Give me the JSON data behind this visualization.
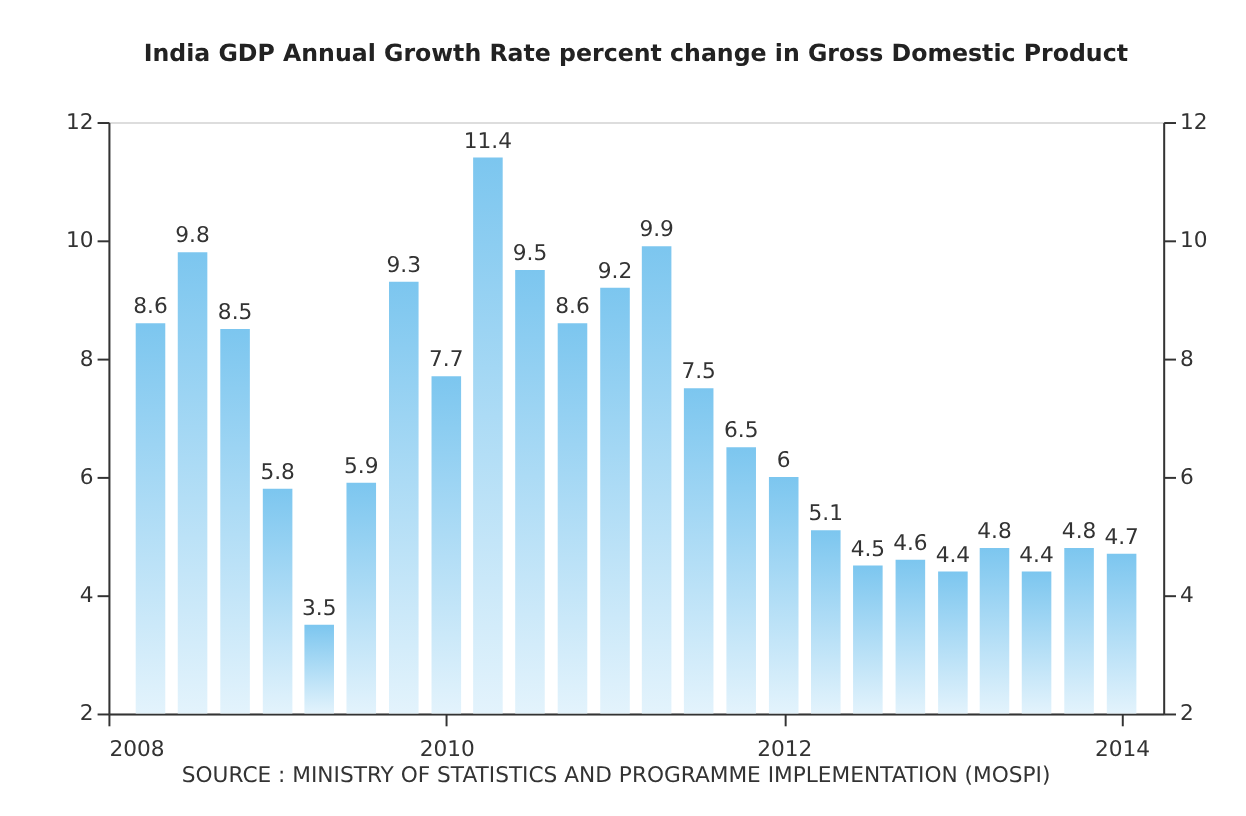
{
  "chart_data": {
    "type": "bar",
    "title": "India GDP Annual Growth Rate percent change in Gross Domestic Product",
    "x": [
      "2008-04",
      "2008-07",
      "2008-10",
      "2009-01",
      "2009-04",
      "2009-07",
      "2009-10",
      "2010-01",
      "2010-04",
      "2010-07",
      "2010-10",
      "2011-01",
      "2011-04",
      "2011-07",
      "2011-10",
      "2012-01",
      "2012-04",
      "2012-07",
      "2012-10",
      "2013-01",
      "2013-04",
      "2013-07",
      "2013-10",
      "2014-01"
    ],
    "values": [
      8.6,
      9.8,
      8.5,
      5.8,
      3.5,
      5.9,
      9.3,
      7.7,
      11.4,
      9.5,
      8.6,
      9.2,
      9.9,
      7.5,
      6.5,
      6,
      5.1,
      4.5,
      4.6,
      4.4,
      4.8,
      4.4,
      4.8,
      4.7
    ],
    "color": "#7cc6ef",
    "data_labels": true,
    "xlim": [
      "2008-01",
      "2014-04"
    ],
    "xticks": [
      "2008",
      "2010",
      "2012",
      "2014"
    ],
    "ylim": [
      2,
      12
    ],
    "yticks": [
      2,
      4,
      6,
      8,
      10,
      12
    ],
    "y2lim": [
      2,
      12
    ],
    "y2ticks": [
      2,
      4,
      6,
      8,
      10,
      12
    ],
    "grid": false,
    "annotations": [
      "SOURCE : MINISTRY OF STATISTICS AND PROGRAMME IMPLEMENTATION (MOSPI)"
    ]
  }
}
